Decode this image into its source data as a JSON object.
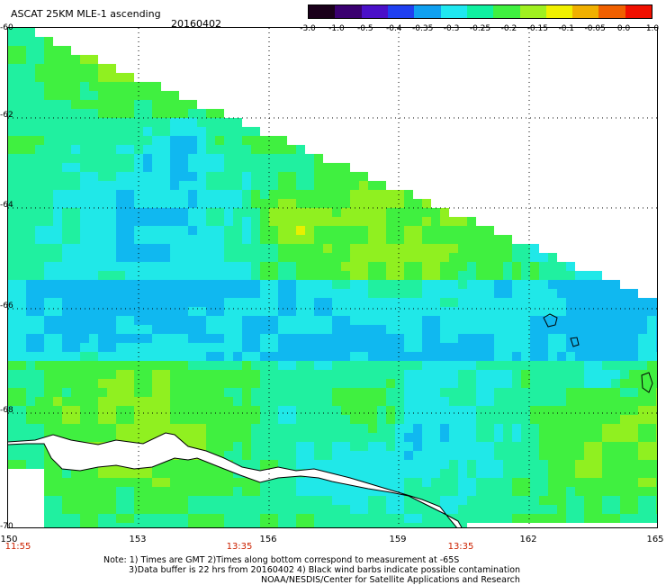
{
  "header": {
    "title": "ASCAT 25KM MLE-1 ascending",
    "date": "20160402"
  },
  "colorbar": {
    "labels": [
      "-3.0",
      "-1.0",
      "-0.5",
      "-0.4",
      "-0.35",
      "-0.3",
      "-0.25",
      "-0.2",
      "-0.15",
      "-0.1",
      "-0.05",
      "0.0",
      "1.0"
    ],
    "colors": [
      "#1a001a",
      "#3a0070",
      "#4a10c8",
      "#2040f0",
      "#10a0f0",
      "#20e8f0",
      "#10f0a0",
      "#40f040",
      "#a0f020",
      "#f0f000",
      "#f0b000",
      "#f06000",
      "#f01000"
    ]
  },
  "map": {
    "lat_labels": [
      "-60",
      "-62",
      "-64",
      "-66",
      "-68",
      "-70"
    ],
    "lon_labels": [
      "150",
      "153",
      "156",
      "159",
      "162",
      "165"
    ],
    "time_labels": [
      "11:55",
      "13:35",
      "13:35"
    ]
  },
  "footer": {
    "note1": "Note: 1) Times are GMT 2)Times along bottom correspond to measurement at -65S",
    "note2": "3)Data buffer is 22 hrs from 20160402 4) Black wind barbs indicate possible contamination",
    "note3": "NOAA/NESDIS/Center for Satellite Applications and Research"
  }
}
